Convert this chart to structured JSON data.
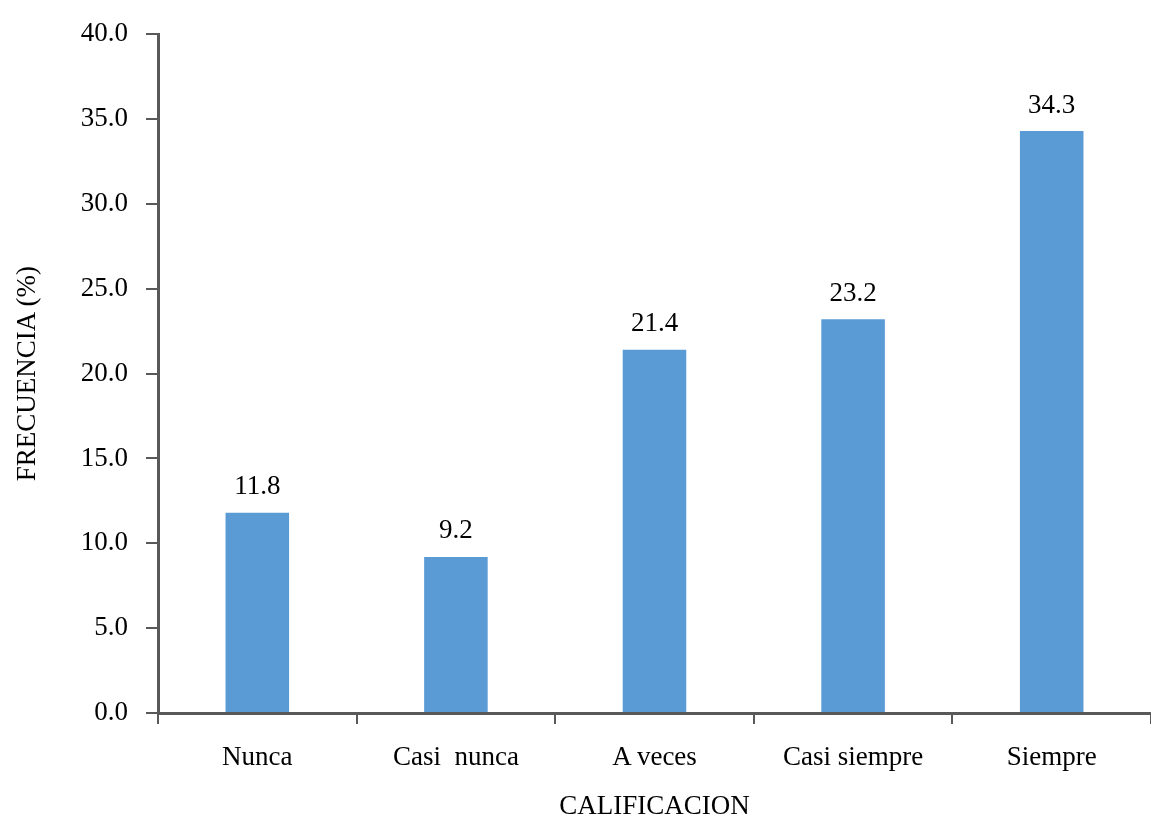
{
  "chart_data": {
    "type": "bar",
    "xlabel": "CALIFICACION",
    "ylabel": "FRECUENCIA (%)",
    "categories": [
      "Nunca",
      "Casi  nunca",
      "A veces",
      "Casi siempre",
      "Siempre"
    ],
    "values": [
      11.8,
      9.2,
      21.4,
      23.2,
      34.3
    ],
    "color": "#5b9bd5",
    "ylim": [
      0,
      40
    ],
    "yticks": [
      {
        "value": 0,
        "label": "0.0"
      },
      {
        "value": 5,
        "label": "5.0"
      },
      {
        "value": 10,
        "label": "10.0"
      },
      {
        "value": 15,
        "label": "15.0"
      },
      {
        "value": 20,
        "label": "20.0"
      },
      {
        "value": 25,
        "label": "25.0"
      },
      {
        "value": 30,
        "label": "30.0"
      },
      {
        "value": 35,
        "label": "35.0"
      },
      {
        "value": 40,
        "label": "40.0"
      }
    ],
    "grid": false,
    "data_labels": true
  }
}
